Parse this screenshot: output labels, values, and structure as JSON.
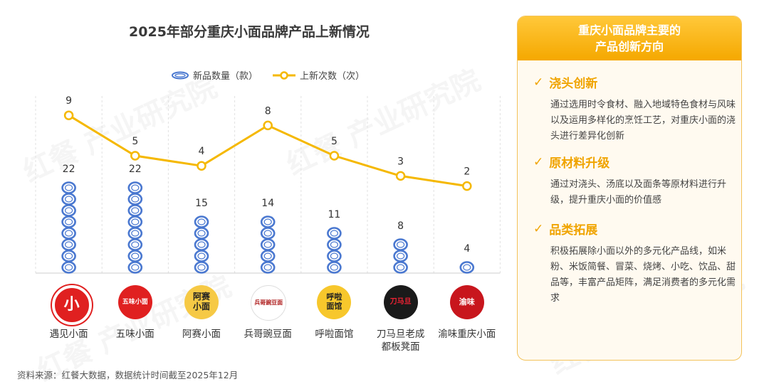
{
  "title": "2025年部分重庆小面品牌产品上新情况",
  "legend": {
    "products": "新品数量（款）",
    "launches": "上新次数（次）"
  },
  "colors": {
    "accent": "#f5b800",
    "ring": "#4a78d0",
    "panel_head": "#f5a800"
  },
  "chart_data": {
    "type": "line+pictogram",
    "categories": [
      "遇见小面",
      "五味小面",
      "阿赛小面",
      "兵哥豌豆面",
      "呼啦面馆",
      "刀马旦老成都板凳面",
      "渝味重庆小面"
    ],
    "category_display": [
      [
        "遇见小面"
      ],
      [
        "五味小面"
      ],
      [
        "阿赛小面"
      ],
      [
        "兵哥豌豆面"
      ],
      [
        "呼啦面馆"
      ],
      [
        "刀马旦老成",
        "都板凳面"
      ],
      [
        "渝味重庆小面"
      ]
    ],
    "series": [
      {
        "name": "新品数量（款）",
        "kind": "pictogram-rings",
        "values": [
          22,
          22,
          15,
          14,
          11,
          8,
          4
        ]
      },
      {
        "name": "上新次数（次）",
        "kind": "line",
        "values": [
          9,
          5,
          4,
          8,
          5,
          3,
          2
        ]
      }
    ]
  },
  "brands": [
    {
      "logo_text": "小"
    },
    {
      "logo_text": "五味小面"
    },
    {
      "logo_text": "阿赛\n小面"
    },
    {
      "logo_text": "兵哥豌豆面"
    },
    {
      "logo_text": "呼啦\n面馆"
    },
    {
      "logo_text": "刀马旦"
    },
    {
      "logo_text": "渝味"
    }
  ],
  "panel": {
    "title_line1": "重庆小面品牌主要的",
    "title_line2": "产品创新方向",
    "sections": [
      {
        "title": "浇头创新",
        "body": "通过选用时令食材、融入地域特色食材与风味以及运用多样化的烹饪工艺，对重庆小面的浇头进行差异化创新"
      },
      {
        "title": "原材料升级",
        "body": "通过对浇头、汤底以及面条等原材料进行升级，提升重庆小面的价值感"
      },
      {
        "title": "品类拓展",
        "body": "积极拓展除小面以外的多元化产品线，如米粉、米饭简餐、冒菜、烧烤、小吃、饮品、甜品等，丰富产品矩阵，满足消费者的多元化需求"
      }
    ]
  },
  "source": "资料来源：红餐大数据，数据统计时间截至2025年12月"
}
